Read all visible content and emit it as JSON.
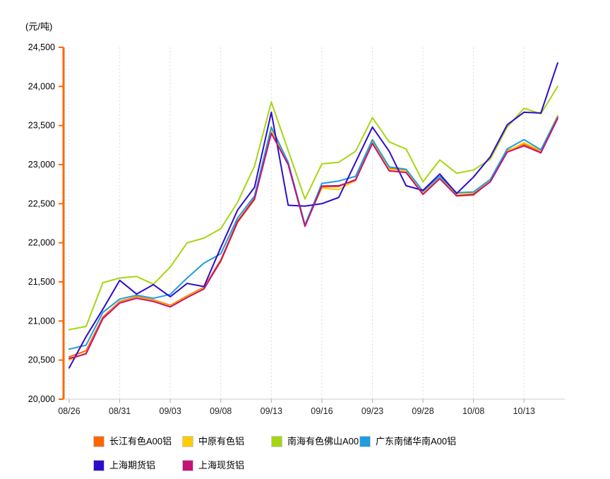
{
  "chart_data": {
    "type": "line",
    "title": "",
    "unit_label": "(元/吨)",
    "xlabel": "",
    "ylabel": "元/吨",
    "ylim": [
      20000,
      24500
    ],
    "y_tick_values": [
      20000,
      20500,
      21000,
      21500,
      22000,
      22500,
      23000,
      23500,
      24000,
      24500
    ],
    "y_tick_labels": [
      "20,000",
      "20,500",
      "21,000",
      "21,500",
      "22,000",
      "22,500",
      "23,000",
      "23,500",
      "24,000",
      "24,500"
    ],
    "x_tick_labels": [
      "08/26",
      "08/31",
      "09/03",
      "09/08",
      "09/13",
      "09/16",
      "09/23",
      "09/28",
      "10/08",
      "10/13"
    ],
    "x_tick_indices": [
      0,
      3,
      6,
      9,
      12,
      15,
      18,
      21,
      24,
      27
    ],
    "dates": [
      "08/26",
      "08/27",
      "08/30",
      "08/31",
      "09/01",
      "09/02",
      "09/03",
      "09/06",
      "09/07",
      "09/08",
      "09/09",
      "09/10",
      "09/13",
      "09/14",
      "09/15",
      "09/16",
      "09/17",
      "09/22",
      "09/23",
      "09/24",
      "09/27",
      "09/28",
      "09/29",
      "09/30",
      "10/08",
      "10/11",
      "10/12",
      "10/13",
      "10/14",
      "10/15"
    ],
    "grid": "vertical-dashed",
    "legend_position": "bottom",
    "axis_colors": {
      "y_axis": "#FF6600",
      "x_axis": "#CCCCCC",
      "gridline": "#DCDCDC",
      "tick_text": "#222222"
    },
    "series": [
      {
        "name": "长江有色A00铝",
        "color": "#FF6600",
        "values": [
          20540,
          20620,
          21050,
          21250,
          21310,
          21270,
          21200,
          21320,
          21430,
          21780,
          22280,
          22570,
          23430,
          23010,
          22220,
          22715,
          22720,
          22810,
          23290,
          22950,
          22930,
          22640,
          22840,
          22600,
          22610,
          22790,
          23180,
          23260,
          23170,
          23620
        ]
      },
      {
        "name": "中原有色铝",
        "color": "#FFCC00",
        "values": [
          20500,
          20590,
          21030,
          21240,
          21300,
          21260,
          21190,
          21310,
          21420,
          21760,
          22260,
          22550,
          23440,
          23010,
          22230,
          22700,
          22680,
          22800,
          23280,
          22940,
          22920,
          22640,
          22830,
          22620,
          22640,
          22800,
          23170,
          23280,
          23180,
          23630
        ]
      },
      {
        "name": "南海有色佛山A00铝",
        "color": "#A5D611",
        "values": [
          20890,
          20930,
          21490,
          21550,
          21570,
          21470,
          21690,
          22000,
          22060,
          22180,
          22520,
          22980,
          23800,
          23180,
          22560,
          23010,
          23030,
          23170,
          23600,
          23290,
          23200,
          22780,
          23060,
          22890,
          22930,
          23070,
          23480,
          23720,
          23650,
          24000
        ]
      },
      {
        "name": "广东南储华南A00铝",
        "color": "#209CDE",
        "values": [
          20640,
          20690,
          21110,
          21280,
          21330,
          21290,
          21340,
          21550,
          21740,
          21860,
          22320,
          22600,
          23480,
          23030,
          22230,
          22760,
          22790,
          22850,
          23320,
          22970,
          22940,
          22660,
          22850,
          22640,
          22650,
          22810,
          23200,
          23320,
          23190,
          23610
        ]
      },
      {
        "name": "上海期货铝",
        "color": "#2F0BCE",
        "values": [
          20400,
          20800,
          21150,
          21520,
          21345,
          21465,
          21310,
          21480,
          21440,
          21940,
          22420,
          22710,
          23670,
          22480,
          22470,
          22500,
          22580,
          23030,
          23480,
          23170,
          22730,
          22670,
          22880,
          22630,
          22840,
          23100,
          23510,
          23670,
          23660,
          24300
        ]
      },
      {
        "name": "上海现货铝",
        "color": "#C51077",
        "values": [
          20520,
          20580,
          21030,
          21230,
          21290,
          21250,
          21180,
          21300,
          21410,
          21770,
          22270,
          22560,
          23400,
          23000,
          22210,
          22725,
          22730,
          22800,
          23270,
          22920,
          22900,
          22620,
          22820,
          22600,
          22620,
          22780,
          23160,
          23240,
          23150,
          23590
        ]
      }
    ],
    "legend_columns_x": [
      132,
      258,
      384,
      509
    ],
    "legend_rows_y": [
      616,
      650
    ]
  }
}
